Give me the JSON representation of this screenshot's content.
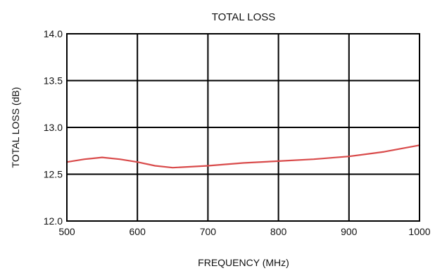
{
  "chart_data": {
    "type": "line",
    "title": "TOTAL  LOSS",
    "xlabel": "FREQUENCY (MHz)",
    "ylabel": "TOTAL LOSS (dB)",
    "xlim": [
      500,
      1000
    ],
    "ylim": [
      12.0,
      14.0
    ],
    "x_ticks": [
      500,
      600,
      700,
      800,
      900,
      1000
    ],
    "x_tick_labels": [
      "500",
      "600",
      "700",
      "800",
      "900",
      "1000"
    ],
    "y_ticks": [
      12.0,
      12.5,
      13.0,
      13.5,
      14.0
    ],
    "y_tick_labels": [
      "12.0",
      "12.5",
      "13.0",
      "13.5",
      "14.0"
    ],
    "grid": true,
    "legend": false,
    "series": [
      {
        "color": "#d94b4b",
        "x": [
          500,
          525,
          550,
          575,
          600,
          625,
          650,
          675,
          700,
          750,
          800,
          850,
          900,
          950,
          1000
        ],
        "y": [
          12.63,
          12.66,
          12.68,
          12.66,
          12.63,
          12.59,
          12.57,
          12.58,
          12.59,
          12.62,
          12.64,
          12.66,
          12.69,
          12.74,
          12.81
        ]
      }
    ]
  }
}
